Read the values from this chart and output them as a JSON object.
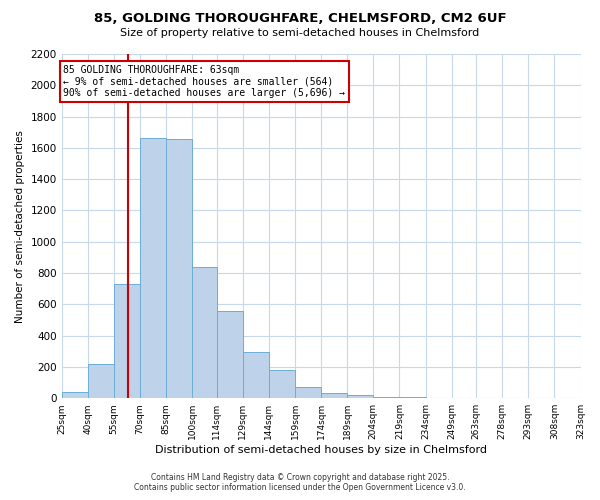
{
  "title": "85, GOLDING THOROUGHFARE, CHELMSFORD, CM2 6UF",
  "subtitle": "Size of property relative to semi-detached houses in Chelmsford",
  "xlabel": "Distribution of semi-detached houses by size in Chelmsford",
  "ylabel": "Number of semi-detached properties",
  "bar_edges": [
    25,
    40,
    55,
    70,
    85,
    100,
    114,
    129,
    144,
    159,
    174,
    189,
    204,
    219,
    234,
    249,
    263,
    278,
    293,
    308,
    323
  ],
  "bar_heights": [
    40,
    220,
    730,
    1665,
    1655,
    840,
    560,
    295,
    180,
    70,
    35,
    20,
    10,
    5,
    2,
    1,
    0,
    0,
    0,
    0
  ],
  "bar_color": "#bed3ea",
  "bar_edge_color": "#6baed6",
  "vline_x": 63,
  "vline_color": "#cc0000",
  "ylim": [
    0,
    2200
  ],
  "yticks": [
    0,
    200,
    400,
    600,
    800,
    1000,
    1200,
    1400,
    1600,
    1800,
    2000,
    2200
  ],
  "annotation_title": "85 GOLDING THOROUGHFARE: 63sqm",
  "annotation_line1": "← 9% of semi-detached houses are smaller (564)",
  "annotation_line2": "90% of semi-detached houses are larger (5,696) →",
  "annotation_box_color": "#ffffff",
  "annotation_box_edge_color": "#cc0000",
  "background_color": "#ffffff",
  "grid_color": "#c8d8ec",
  "footer_line1": "Contains HM Land Registry data © Crown copyright and database right 2025.",
  "footer_line2": "Contains public sector information licensed under the Open Government Licence v3.0.",
  "tick_labels": [
    "25sqm",
    "40sqm",
    "55sqm",
    "70sqm",
    "85sqm",
    "100sqm",
    "114sqm",
    "129sqm",
    "144sqm",
    "159sqm",
    "174sqm",
    "189sqm",
    "204sqm",
    "219sqm",
    "234sqm",
    "249sqm",
    "263sqm",
    "278sqm",
    "293sqm",
    "308sqm",
    "323sqm"
  ]
}
